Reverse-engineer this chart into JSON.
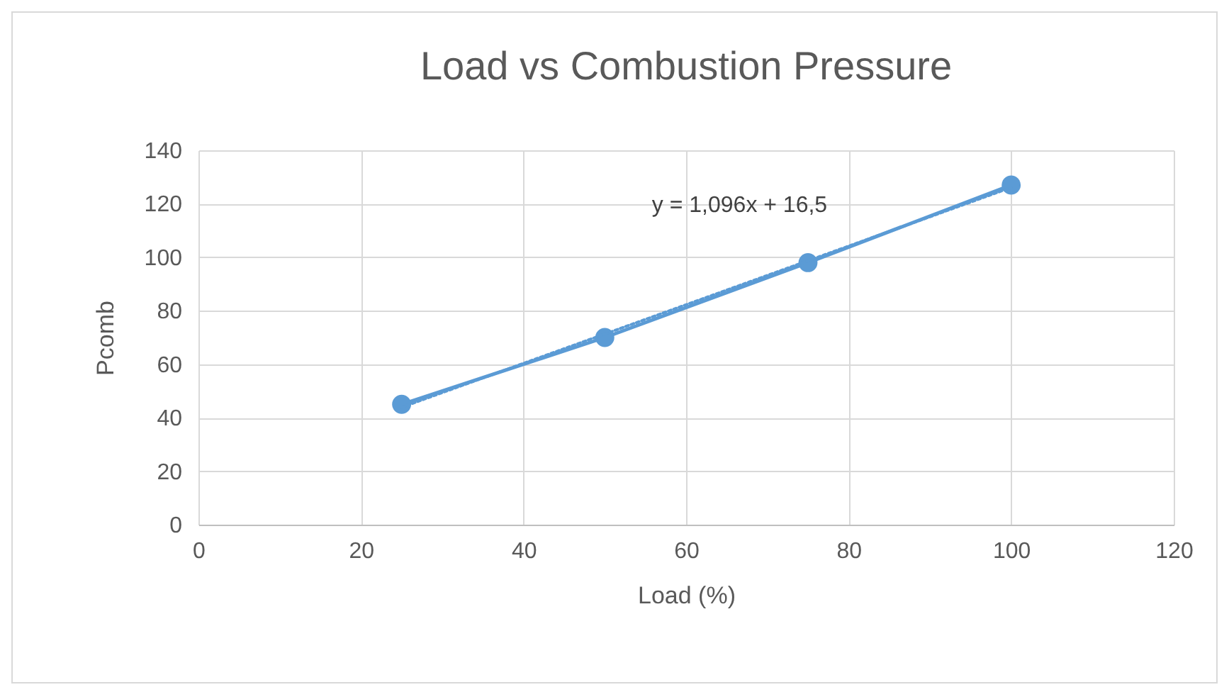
{
  "chart_data": {
    "type": "line",
    "title": "Load vs Combustion Pressure",
    "xlabel": "Load (%)",
    "ylabel": "Pcomb",
    "xlim": [
      0,
      120
    ],
    "ylim": [
      0,
      140
    ],
    "xticks": [
      0,
      20,
      40,
      60,
      80,
      100,
      120
    ],
    "yticks": [
      0,
      20,
      40,
      60,
      80,
      100,
      120,
      140
    ],
    "grid": true,
    "marker": "circle",
    "x": [
      25,
      50,
      75,
      100
    ],
    "series": [
      {
        "color": "#5b9bd5",
        "values": [
          45,
          70,
          98,
          127
        ]
      },
      {
        "type": "line",
        "color": "#5b9bd5",
        "line_style": "dotted",
        "marker": "none",
        "x": [
          25,
          100
        ],
        "values": [
          43.9,
          126.1
        ]
      }
    ],
    "annotations": [
      "y = 1,096x + 16,5"
    ]
  }
}
